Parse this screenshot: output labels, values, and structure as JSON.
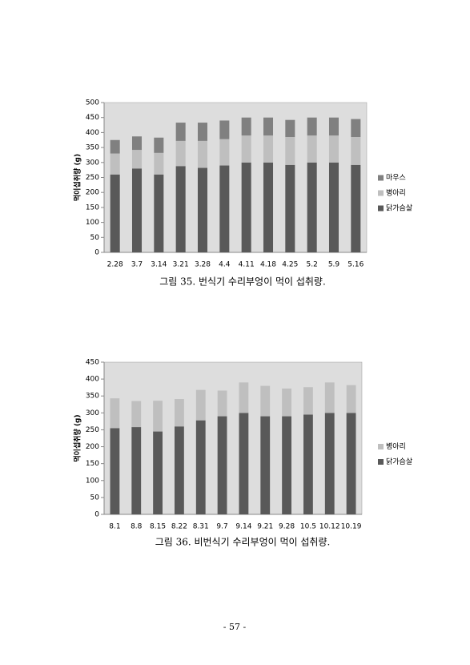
{
  "chart_data": [
    {
      "type": "bar",
      "stacked": true,
      "title": "그림 35. 번식기 수리부엉이 먹이 섭취량.",
      "y_label": "먹이섭취량 (g)",
      "categories": [
        "2.28",
        "3.7",
        "3.14",
        "3.21",
        "3.28",
        "4.4",
        "4.11",
        "4.18",
        "4.25",
        "5.2",
        "5.9",
        "5.16"
      ],
      "series": [
        {
          "name": "닭가슴살",
          "color": "#595959",
          "values": [
            260,
            280,
            260,
            288,
            282,
            290,
            300,
            300,
            292,
            300,
            300,
            292
          ]
        },
        {
          "name": "병아리",
          "color": "#bfbfbf",
          "values": [
            70,
            62,
            72,
            84,
            90,
            88,
            90,
            90,
            93,
            90,
            90,
            93
          ]
        },
        {
          "name": "마우스",
          "color": "#808080",
          "values": [
            45,
            45,
            51,
            61,
            61,
            62,
            60,
            60,
            57,
            60,
            60,
            60
          ]
        }
      ],
      "ylim": [
        0,
        500
      ],
      "yticks": [
        0,
        50,
        100,
        150,
        200,
        250,
        300,
        350,
        400,
        450,
        500
      ],
      "legend": "right"
    },
    {
      "type": "bar",
      "stacked": true,
      "title": "그림 36. 비번식기 수리부엉이 먹이 섭취량.",
      "y_label": "먹이섭취량 (g)",
      "categories": [
        "8.1",
        "8.8",
        "8.15",
        "8.22",
        "8.31",
        "9.7",
        "9.14",
        "9.21",
        "9.28",
        "10.5",
        "10.12",
        "10.19"
      ],
      "series": [
        {
          "name": "닭가슴살",
          "color": "#595959",
          "values": [
            255,
            258,
            245,
            260,
            278,
            290,
            300,
            290,
            290,
            295,
            300,
            300
          ]
        },
        {
          "name": "병아리",
          "color": "#bfbfbf",
          "values": [
            88,
            77,
            91,
            81,
            90,
            76,
            90,
            90,
            82,
            81,
            90,
            82
          ]
        }
      ],
      "ylim": [
        0,
        450
      ],
      "yticks": [
        0,
        50,
        100,
        150,
        200,
        250,
        300,
        350,
        400,
        450
      ],
      "legend": "right"
    }
  ],
  "page_number": "- 57 -"
}
